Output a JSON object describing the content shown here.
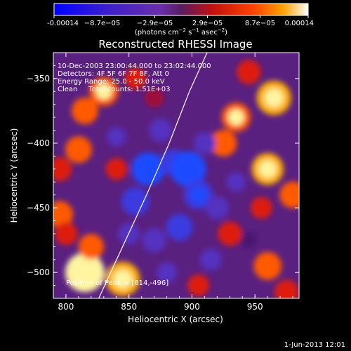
{
  "chart_data": {
    "type": "heatmap",
    "title": "Reconstructed RHESSI Image",
    "xlabel": "Heliocentric X (arcsec)",
    "ylabel": "Heliocentric Y (arcsec)",
    "xlim": [
      790,
      985
    ],
    "ylim": [
      -520,
      -330
    ],
    "xticks": [
      800,
      850,
      900,
      950
    ],
    "yticks": [
      -350,
      -400,
      -450,
      -500
    ],
    "grid": false,
    "colorbar": {
      "ticks": [
        "-0.00014",
        "−8.7e−05",
        "−2.9e−05",
        "2.9e−05",
        "8.7e−05",
        "0.00014"
      ],
      "tick_values": [
        -0.00014,
        -8.7e-05,
        -2.9e-05,
        2.9e-05,
        8.7e-05,
        0.00014
      ],
      "unit_label_prefix": "(photons cm",
      "unit_label_exp1": "−2",
      "unit_label_mid": " s",
      "unit_label_exp2": "−1",
      "unit_label_mid2": " asec",
      "unit_label_exp3": "−2",
      "unit_label_suffix": ")"
    },
    "annotations": [
      "10-Dec-2003 23:00:44.000 to 23:02:44.000",
      "Detectors: 4F 5F 6F 7F 8F, Att 0",
      "Energy Range: 25.0 - 50.0 keV",
      "Clean     Total counts: 1.51E+03"
    ],
    "peak_label": "Position of Peak = [814,-496]",
    "peak": {
      "x": 814,
      "y": -496
    },
    "limb_curve": [
      [
        826,
        -520
      ],
      [
        845,
        -480
      ],
      [
        864,
        -440
      ],
      [
        882,
        -400
      ],
      [
        898,
        -360
      ],
      [
        912,
        -330
      ]
    ],
    "blobs": [
      {
        "x": 830,
        "y": -360,
        "v": 0.6
      },
      {
        "x": 815,
        "y": -375,
        "v": 0.5
      },
      {
        "x": 870,
        "y": -365,
        "v": 0.2
      },
      {
        "x": 855,
        "y": -350,
        "v": 0.3
      },
      {
        "x": 965,
        "y": -365,
        "v": 0.8
      },
      {
        "x": 935,
        "y": -380,
        "v": 0.6
      },
      {
        "x": 945,
        "y": -345,
        "v": 0.4
      },
      {
        "x": 925,
        "y": -400,
        "v": 0.5
      },
      {
        "x": 960,
        "y": -420,
        "v": 0.7
      },
      {
        "x": 980,
        "y": -440,
        "v": 0.5
      },
      {
        "x": 955,
        "y": -450,
        "v": 0.3
      },
      {
        "x": 810,
        "y": -405,
        "v": 0.5
      },
      {
        "x": 795,
        "y": -420,
        "v": 0.4
      },
      {
        "x": 795,
        "y": -455,
        "v": 0.5
      },
      {
        "x": 800,
        "y": -470,
        "v": 0.35
      },
      {
        "x": 815,
        "y": -500,
        "v": 1.0
      },
      {
        "x": 845,
        "y": -505,
        "v": 0.8
      },
      {
        "x": 820,
        "y": -480,
        "v": 0.45
      },
      {
        "x": 840,
        "y": -420,
        "v": 0.3
      },
      {
        "x": 930,
        "y": -470,
        "v": 0.4
      },
      {
        "x": 960,
        "y": -495,
        "v": 0.55
      },
      {
        "x": 975,
        "y": -515,
        "v": 0.4
      },
      {
        "x": 905,
        "y": -510,
        "v": 0.3
      },
      {
        "x": 875,
        "y": -390,
        "v": -0.35
      },
      {
        "x": 865,
        "y": -420,
        "v": -0.75
      },
      {
        "x": 855,
        "y": -445,
        "v": -0.55
      },
      {
        "x": 885,
        "y": -415,
        "v": -0.5
      },
      {
        "x": 897,
        "y": -420,
        "v": -0.85
      },
      {
        "x": 905,
        "y": -440,
        "v": -0.6
      },
      {
        "x": 890,
        "y": -465,
        "v": -0.5
      },
      {
        "x": 870,
        "y": -475,
        "v": -0.4
      },
      {
        "x": 910,
        "y": -400,
        "v": -0.3
      },
      {
        "x": 920,
        "y": -450,
        "v": -0.35
      },
      {
        "x": 915,
        "y": -490,
        "v": -0.3
      },
      {
        "x": 850,
        "y": -470,
        "v": -0.3
      },
      {
        "x": 880,
        "y": -500,
        "v": -0.25
      },
      {
        "x": 935,
        "y": -430,
        "v": -0.2
      },
      {
        "x": 945,
        "y": -475,
        "v": -0.1
      },
      {
        "x": 840,
        "y": -395,
        "v": -0.2
      }
    ]
  },
  "footer": {
    "date": "1-Jun-2013 12:01"
  }
}
